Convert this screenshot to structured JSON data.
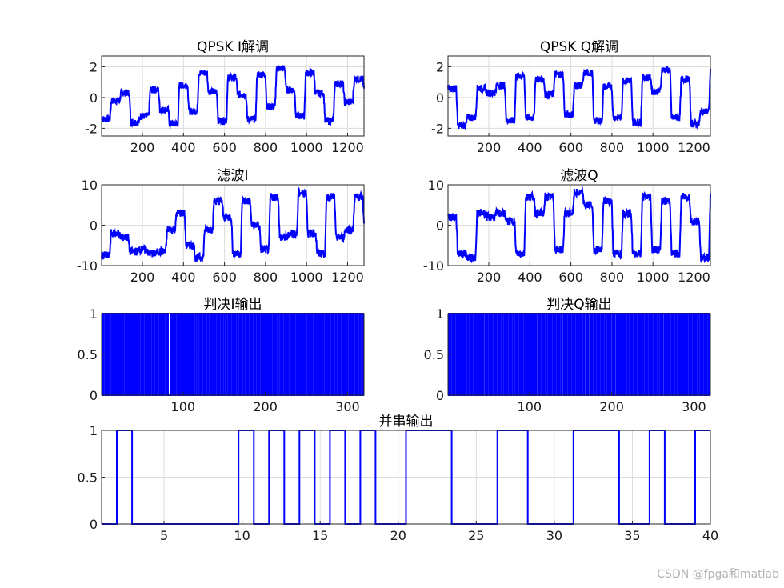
{
  "watermark": "CSDN @fpga和matlab",
  "colors": {
    "series": "#0000ff",
    "grid": "#dcdcdc",
    "axis": "#262626"
  },
  "chart_data": [
    {
      "id": "i_demod",
      "type": "line",
      "title": "QPSK I解调",
      "xlim": [
        1,
        1280
      ],
      "ylim": [
        -2.5,
        2.7
      ],
      "xticks": [
        200,
        400,
        600,
        800,
        1000,
        1200
      ],
      "yticks": [
        -2,
        0,
        2
      ],
      "levels": [
        -1.4,
        -0.2,
        0.3,
        -1.6,
        -1.2,
        0.5,
        -0.8,
        -1.7,
        0.8,
        -0.9,
        1.6,
        0.4,
        -1.5,
        1.3,
        0.2,
        -1.4,
        1.5,
        -0.6,
        1.9,
        0.5,
        -1.2,
        1.6,
        0.3,
        -1.5,
        0.9,
        -0.3,
        1.2,
        0.6
      ],
      "noise": 0.45,
      "grid": true
    },
    {
      "id": "q_demod",
      "type": "line",
      "title": "QPSK Q解调",
      "xlim": [
        1,
        1280
      ],
      "ylim": [
        -2.5,
        2.7
      ],
      "xticks": [
        200,
        400,
        600,
        800,
        1000,
        1200
      ],
      "yticks": [
        -2,
        0,
        2
      ],
      "levels": [
        0.6,
        -1.8,
        -1.3,
        0.6,
        0.3,
        0.8,
        -1.5,
        1.4,
        -1.3,
        1.2,
        0.2,
        1.5,
        -1.1,
        0.8,
        1.6,
        -1.5,
        0.7,
        -1.3,
        1.1,
        -1.6,
        1.3,
        0.4,
        1.8,
        -1.3,
        1.2,
        -1.7,
        -0.9,
        1.8
      ],
      "noise": 0.45,
      "grid": true
    },
    {
      "id": "filt_i",
      "type": "line",
      "title": "滤波I",
      "xlim": [
        1,
        1280
      ],
      "ylim": [
        -10,
        10
      ],
      "xticks": [
        200,
        400,
        600,
        800,
        1000,
        1200
      ],
      "yticks": [
        -10,
        0,
        10
      ],
      "levels": [
        -7.5,
        -2,
        -3,
        -6.5,
        -6,
        -7,
        -6.5,
        -1,
        3,
        -5,
        -8,
        -1,
        6,
        2,
        -7,
        6,
        0,
        -6,
        7,
        -3,
        -2,
        8,
        -2,
        -7,
        7,
        -3,
        -1,
        7,
        1
      ],
      "noise": 0.5,
      "grid": true
    },
    {
      "id": "filt_q",
      "type": "line",
      "title": "滤波Q",
      "xlim": [
        1,
        1280
      ],
      "ylim": [
        -10,
        10
      ],
      "xticks": [
        200,
        400,
        600,
        800,
        1000,
        1200
      ],
      "yticks": [
        -10,
        0,
        10
      ],
      "levels": [
        2,
        -7,
        -8,
        3,
        2,
        3,
        1,
        -7,
        7,
        3,
        7,
        -6,
        3,
        8,
        5,
        -6,
        6,
        -7,
        3,
        -7,
        7,
        -6,
        6,
        -7,
        7,
        1,
        -8,
        7
      ],
      "noise": 0.5,
      "grid": true
    },
    {
      "id": "dec_i",
      "type": "line",
      "title": "判决I输出",
      "xlim": [
        1,
        320
      ],
      "ylim": [
        0,
        1
      ],
      "xticks": [
        100,
        200,
        300
      ],
      "yticks": [
        0,
        0.5,
        1
      ],
      "bits": "1011010110110101101011011011010101101101011010110101101101011010011011010110110100011011011010101101101101011010011011010110101101101011011010110100110110101101011011010110110101101011011010110101011010110110101101101011010101101101011011010110101101101011011010101101101101011010110110101101101011011010110101101101",
      "grid": true
    },
    {
      "id": "dec_q",
      "type": "line",
      "title": "判决Q输出",
      "xlim": [
        1,
        320
      ],
      "ylim": [
        0,
        1
      ],
      "xticks": [
        100,
        200,
        300
      ],
      "yticks": [
        0,
        0.5,
        1
      ],
      "bits": "0101101011011010110101101101011010110101101101011010110101101011011010110101101101011010110110101101011011010110101101101011010110101101101011010110101101101011011010110101101101011010110110101101011011010110101101101011010110101101101011010110101101101011011010110101101101011010110110101101011011010110101101",
      "grid": true
    },
    {
      "id": "par_ser",
      "type": "line",
      "title": "并串输出",
      "xlim": [
        1,
        40
      ],
      "ylim": [
        0,
        1
      ],
      "xticks": [
        5,
        10,
        15,
        20,
        25,
        30,
        35,
        40
      ],
      "yticks": [
        0,
        0.5,
        1
      ],
      "bits": "0100000001010101010011100011000111001001",
      "grid": true
    }
  ]
}
